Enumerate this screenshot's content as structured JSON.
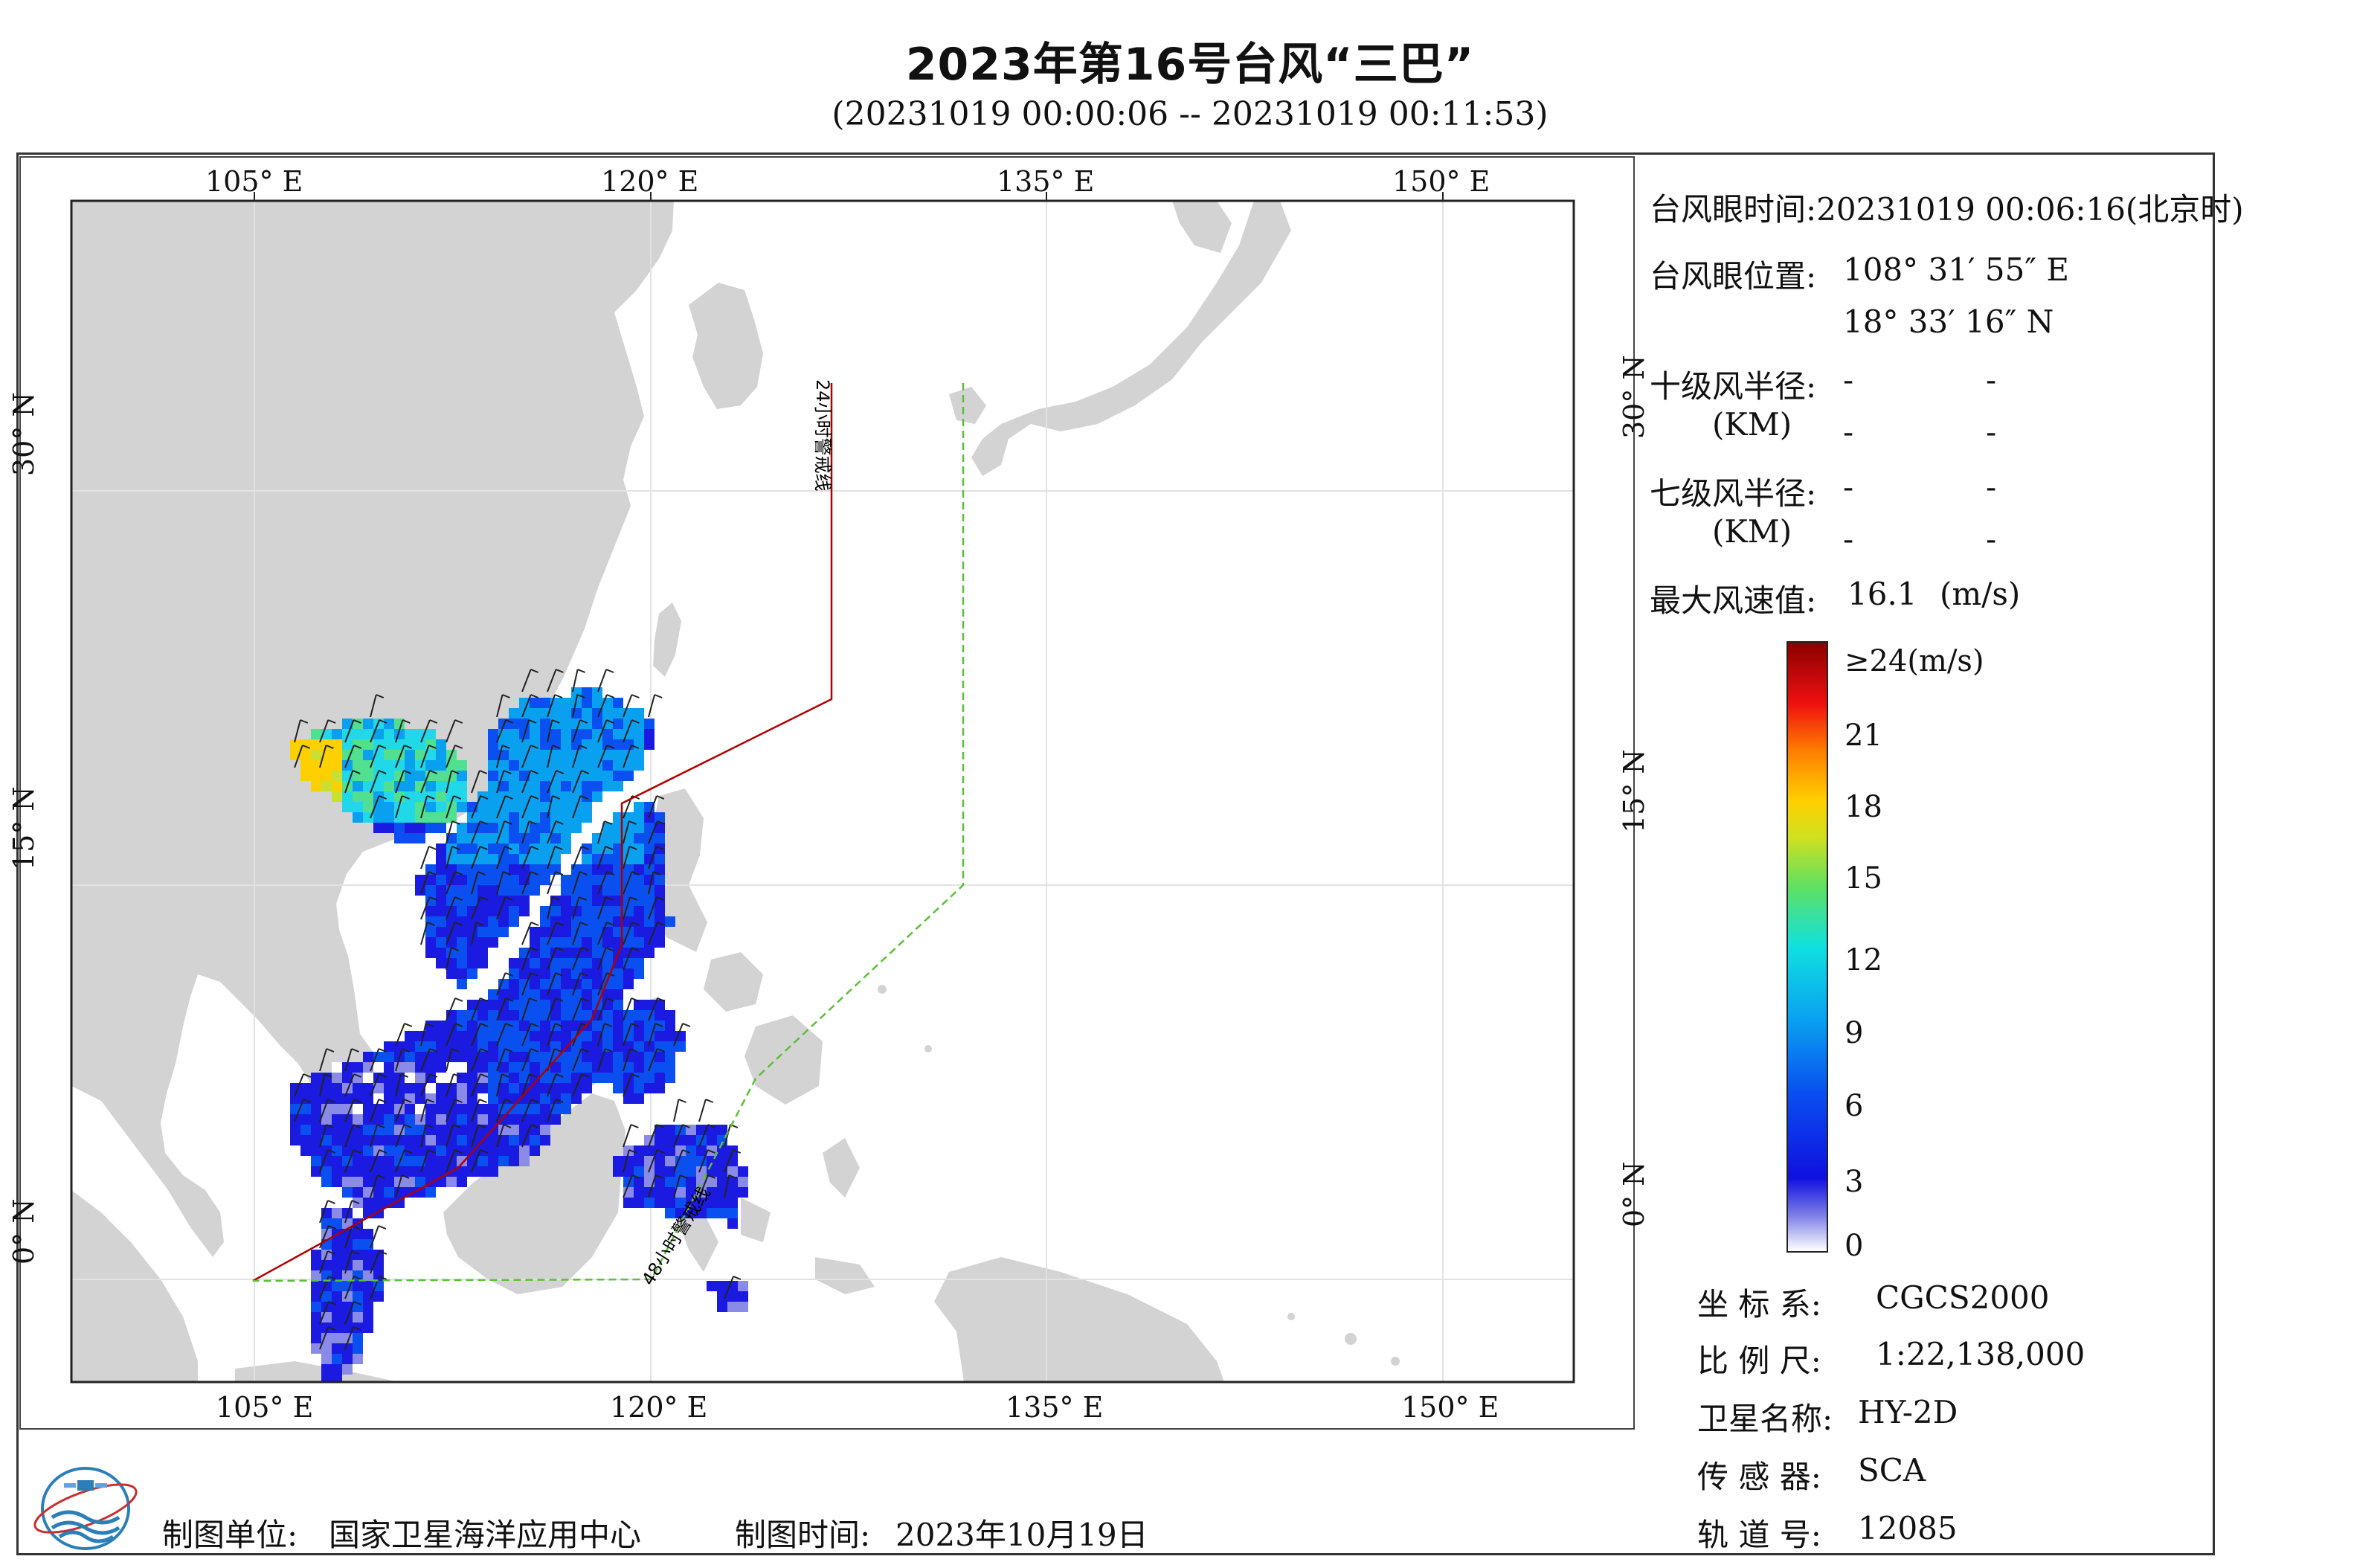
{
  "header": {
    "title": "2023年第16号台风“三巴”",
    "subtitle": "(20231019 00:00:06 -- 20231019 00:11:53)"
  },
  "map": {
    "lon_ticks_top": [
      "105° E",
      "120° E",
      "135° E",
      "150° E"
    ],
    "lon_ticks_bottom": [
      "105° E",
      "120° E",
      "135° E",
      "150° E"
    ],
    "lat_ticks": [
      "30° N",
      "15° N",
      "0° N"
    ],
    "line_24h_label": "24小时警戒线",
    "line_48h_label": "48小时警戒线",
    "colors": {
      "land": "#d3d3d3",
      "sea": "#ffffff",
      "line_24h": "#b00000",
      "line_48h": "#5cbf3a"
    }
  },
  "info": {
    "eye_time_label": "台风眼时间:",
    "eye_time_value": "20231019 00:06:16(北京时)",
    "eye_pos_label": "台风眼位置:",
    "eye_lon": "108° 31′ 55″ E",
    "eye_lat": "18° 33′ 16″ N",
    "r10_label": "十级风半径:",
    "r7_label": "七级风半径:",
    "km_label": "(KM)",
    "dash": "-",
    "max_wind_label": "最大风速值:",
    "max_wind_value": "16.1",
    "max_wind_unit": "(m/s)"
  },
  "colorbar": {
    "labels": [
      "≥24(m/s)",
      "21",
      "18",
      "15",
      "12",
      "9",
      "6",
      "3",
      "0"
    ]
  },
  "metadata": {
    "crs_label": "坐 标 系:",
    "crs_value": "CGCS2000",
    "scale_label": "比 例 尺:",
    "scale_value": "1:22,138,000",
    "satellite_label": "卫星名称:",
    "satellite_value": "HY-2D",
    "sensor_label": "传 感 器:",
    "sensor_value": "SCA",
    "orbit_label": "轨 道 号:",
    "orbit_value": "12085"
  },
  "footer": {
    "producer_label": "制图单位:",
    "producer_value": "国家卫星海洋应用中心",
    "date_label": "制图时间:",
    "date_value": "2023年10月19日"
  }
}
